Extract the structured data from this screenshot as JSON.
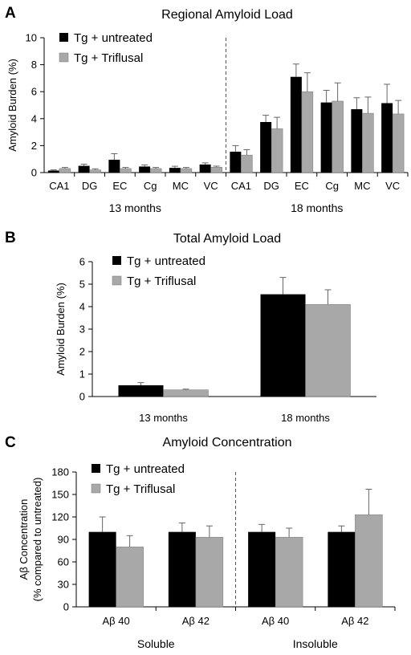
{
  "panels": [
    {
      "letter": "A"
    },
    {
      "letter": "B"
    },
    {
      "letter": "C"
    }
  ],
  "colors": {
    "untreated": "#000000",
    "triflusal": "#a8a8a8"
  },
  "chart_data": [
    {
      "type": "bar",
      "title": "Regional Amyloid Load",
      "ylabel": "Amyloid Burden (%)",
      "ylim": [
        0,
        10
      ],
      "yticks": [
        0,
        2,
        4,
        6,
        8,
        10
      ],
      "legend": [
        "Tg + untreated",
        "Tg +  Triflusal"
      ],
      "legend_position": "top-left",
      "categories": [
        "CA1",
        "DG",
        "EC",
        "Cg",
        "MC",
        "VC",
        "CA1",
        "DG",
        "EC",
        "Cg",
        "MC",
        "VC"
      ],
      "groups": [
        "13 months",
        "18 months"
      ],
      "series": [
        {
          "name": "Tg + untreated",
          "values": [
            0.15,
            0.5,
            0.95,
            0.45,
            0.35,
            0.6,
            1.55,
            3.75,
            7.1,
            5.2,
            4.7,
            5.15
          ],
          "errors": [
            0.05,
            0.12,
            0.45,
            0.12,
            0.12,
            0.12,
            0.45,
            0.5,
            0.95,
            0.9,
            0.85,
            1.4
          ]
        },
        {
          "name": "Tg +  Triflusal",
          "values": [
            0.3,
            0.2,
            0.3,
            0.3,
            0.3,
            0.4,
            1.3,
            3.25,
            6.0,
            5.3,
            4.4,
            4.35
          ],
          "errors": [
            0.08,
            0.08,
            0.08,
            0.08,
            0.08,
            0.08,
            0.4,
            0.85,
            1.4,
            1.35,
            1.2,
            1.0
          ]
        }
      ]
    },
    {
      "type": "bar",
      "title": "Total Amyloid Load",
      "ylabel": "Amyloid Burden (%)",
      "ylim": [
        0,
        6
      ],
      "yticks": [
        0,
        1,
        2,
        3,
        4,
        5,
        6
      ],
      "legend": [
        "Tg + untreated",
        "Tg +  Triflusal"
      ],
      "legend_position": "top-left",
      "categories": [
        "13 months",
        "18 months"
      ],
      "series": [
        {
          "name": "Tg + untreated",
          "values": [
            0.5,
            4.55
          ],
          "errors": [
            0.12,
            0.75
          ]
        },
        {
          "name": "Tg +  Triflusal",
          "values": [
            0.3,
            4.1
          ],
          "errors": [
            0.03,
            0.65
          ]
        }
      ]
    },
    {
      "type": "bar",
      "title": "Amyloid Concentration",
      "ylabel_lines": [
        "Aβ Concentration",
        "(% compared to untreated)"
      ],
      "ylim": [
        0,
        180
      ],
      "yticks": [
        0,
        30,
        60,
        90,
        120,
        150,
        180
      ],
      "legend": [
        "Tg + untreated",
        "Tg +  Triflusal"
      ],
      "legend_position": "top-left",
      "categories": [
        "Aβ 40",
        "Aβ 42",
        "Aβ 40",
        "Aβ 42"
      ],
      "groups": [
        "Soluble",
        "Insoluble"
      ],
      "series": [
        {
          "name": "Tg + untreated",
          "values": [
            100,
            100,
            100,
            100
          ],
          "errors": [
            20,
            12,
            10,
            8
          ]
        },
        {
          "name": "Tg +  Triflusal",
          "values": [
            80,
            93,
            93,
            123
          ],
          "errors": [
            15,
            15,
            12,
            34
          ]
        }
      ]
    }
  ]
}
